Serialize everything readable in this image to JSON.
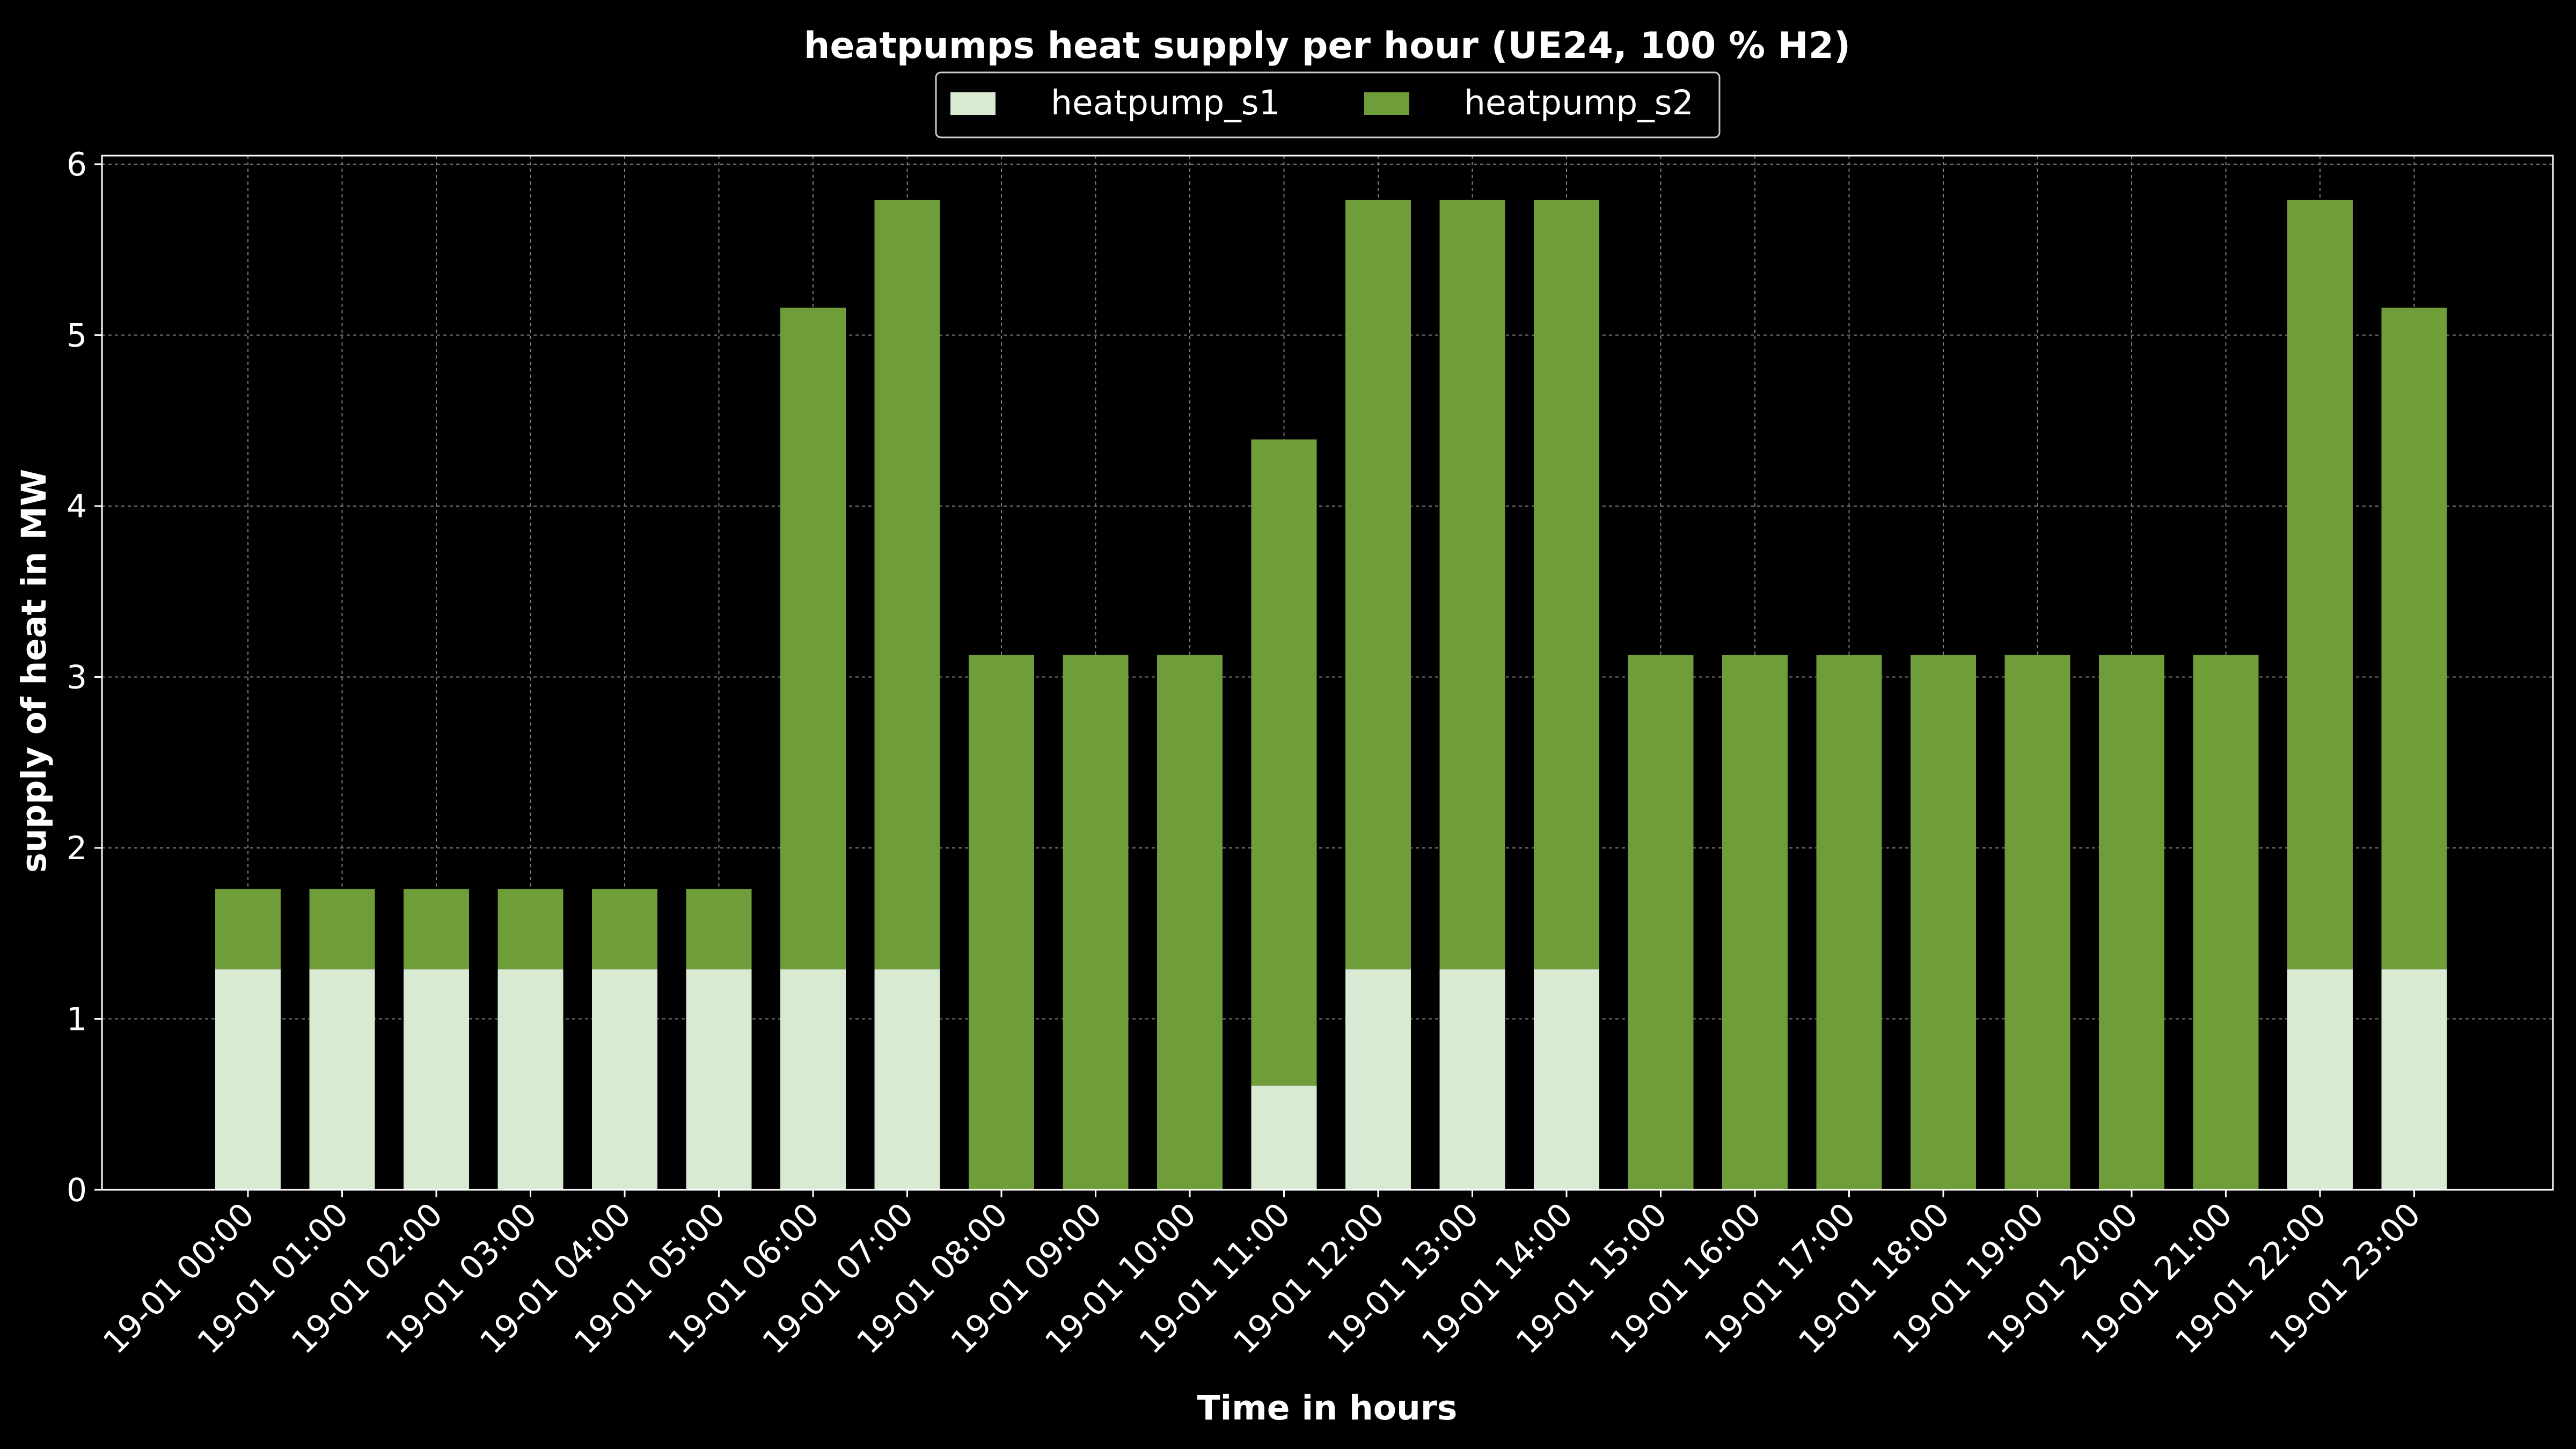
{
  "chart_data": {
    "type": "bar",
    "stacked": true,
    "title": "heatpumps heat supply per hour (UE24, 100 % H2)",
    "xlabel": "Time in hours",
    "ylabel": "supply of heat in MW",
    "ylim": [
      0,
      6.05
    ],
    "yticks": [
      0,
      1,
      2,
      3,
      4,
      5,
      6
    ],
    "grid": true,
    "legend_position": "top-center",
    "categories": [
      "19-01 00:00",
      "19-01 01:00",
      "19-01 02:00",
      "19-01 03:00",
      "19-01 04:00",
      "19-01 05:00",
      "19-01 06:00",
      "19-01 07:00",
      "19-01 08:00",
      "19-01 09:00",
      "19-01 10:00",
      "19-01 11:00",
      "19-01 12:00",
      "19-01 13:00",
      "19-01 14:00",
      "19-01 15:00",
      "19-01 16:00",
      "19-01 17:00",
      "19-01 18:00",
      "19-01 19:00",
      "19-01 20:00",
      "19-01 21:00",
      "19-01 22:00",
      "19-01 23:00"
    ],
    "series": [
      {
        "name": "heatpump_s1",
        "color": "#d9ead3",
        "values": [
          1.29,
          1.29,
          1.29,
          1.29,
          1.29,
          1.29,
          1.29,
          1.29,
          0,
          0,
          0,
          0.61,
          1.29,
          1.29,
          1.29,
          0,
          0,
          0,
          0,
          0,
          0,
          0,
          1.29,
          1.29
        ]
      },
      {
        "name": "heatpump_s2",
        "color": "#6f9d3a",
        "values": [
          0.47,
          0.47,
          0.47,
          0.47,
          0.47,
          0.47,
          3.87,
          4.5,
          3.13,
          3.13,
          3.13,
          3.78,
          4.5,
          4.5,
          4.5,
          3.13,
          3.13,
          3.13,
          3.13,
          3.13,
          3.13,
          3.13,
          4.5,
          3.87
        ]
      }
    ],
    "colors": {
      "background": "#000000",
      "axes": "#ffffff",
      "grid": "#7f7f7f",
      "text": "#ffffff"
    }
  }
}
